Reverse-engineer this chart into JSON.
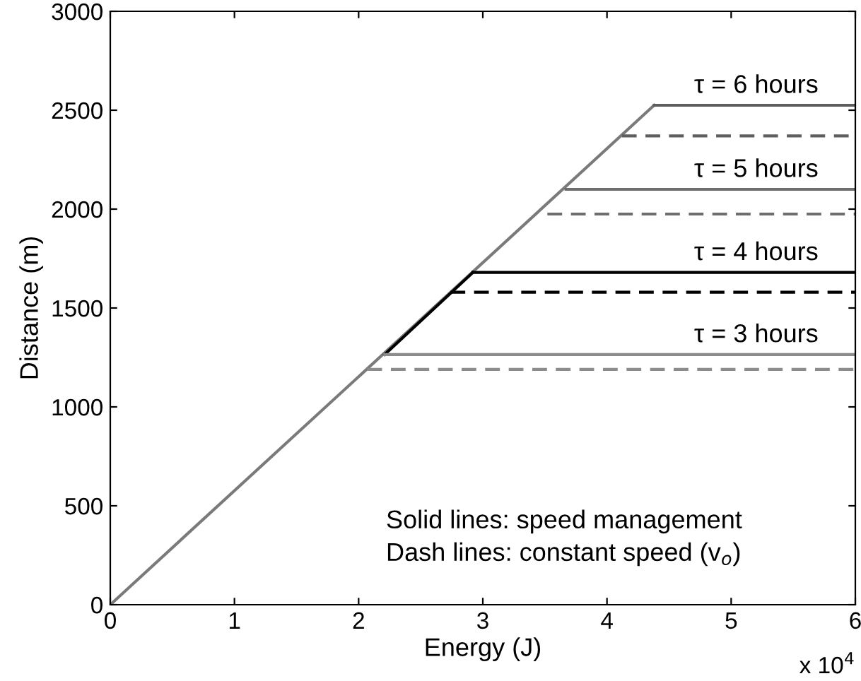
{
  "chart_data": {
    "type": "line",
    "xlabel": "Energy (J)",
    "ylabel": "Distance (m)",
    "xlim": [
      0,
      6
    ],
    "ylim": [
      0,
      3000
    ],
    "xticks": [
      0,
      1,
      2,
      3,
      4,
      5,
      6
    ],
    "yticks": [
      0,
      500,
      1000,
      1500,
      2000,
      2500,
      3000
    ],
    "grid": false,
    "marker": "none",
    "series": [
      {
        "color": "#7a7a7a",
        "x": [
          0,
          4.38
        ],
        "values": [
          0,
          2525
        ],
        "line_style": "solid"
      },
      {
        "color": "#000000",
        "x": [
          2.21,
          2.92
        ],
        "values": [
          1265,
          1680
        ],
        "line_style": "solid"
      },
      {
        "color": "#8c8c8c",
        "x": [
          2.21,
          6
        ],
        "values": [
          1265,
          1265
        ],
        "line_style": "solid"
      },
      {
        "color": "#8c8c8c",
        "x": [
          2.07,
          6
        ],
        "values": [
          1190,
          1190
        ],
        "line_style": "dashed"
      },
      {
        "color": "#000000",
        "x": [
          2.92,
          6
        ],
        "values": [
          1680,
          1680
        ],
        "line_style": "solid"
      },
      {
        "color": "#000000",
        "x": [
          2.74,
          6
        ],
        "values": [
          1580,
          1580
        ],
        "line_style": "dashed"
      },
      {
        "color": "#6e6e6e",
        "x": [
          3.67,
          6
        ],
        "values": [
          2100,
          2100
        ],
        "line_style": "solid"
      },
      {
        "color": "#6e6e6e",
        "x": [
          3.52,
          6
        ],
        "values": [
          1975,
          1975
        ],
        "line_style": "dashed"
      },
      {
        "color": "#5e5e5e",
        "x": [
          4.38,
          6
        ],
        "values": [
          2525,
          2525
        ],
        "line_style": "solid"
      },
      {
        "color": "#5e5e5e",
        "x": [
          4.12,
          6
        ],
        "values": [
          2370,
          2370
        ],
        "line_style": "dashed"
      }
    ],
    "annotations": [
      {
        "text": "τ = 3 hours",
        "y": 1265
      },
      {
        "text": "τ = 4 hours",
        "y": 1680
      },
      {
        "text": "τ = 5 hours",
        "y": 2100
      },
      {
        "text": "τ = 6 hours",
        "y": 2525
      },
      "Solid lines: speed management",
      "Dash lines: constant speed (v$_{o}$)",
      "x 10$^{4}$"
    ]
  }
}
